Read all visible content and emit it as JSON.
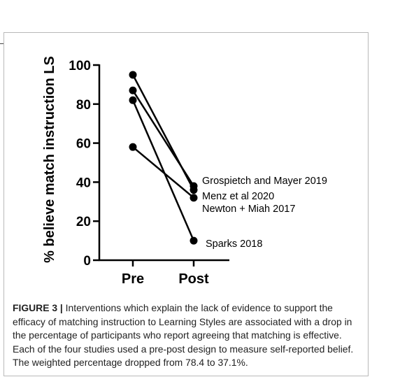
{
  "caption": {
    "label": "FIGURE 3 |",
    "text": " Interventions which explain the lack of evidence to support the efficacy of matching instruction to Learning Styles are associated with a drop in the percentage of participants who report agreeing that matching is effective. Each of the four studies used a pre-post design to measure self-reported belief. The weighted percentage dropped from 78.4 to 37.1%."
  },
  "chart_data": {
    "type": "line",
    "categories": [
      "Pre",
      "Post"
    ],
    "ylabel": "% believe match instruction LS",
    "xlabel": "",
    "ylim": [
      0,
      100
    ],
    "yticks": [
      0,
      20,
      40,
      60,
      80,
      100
    ],
    "grid": false,
    "legend": "right of post points",
    "series": [
      {
        "name": "Grospietch and Mayer 2019",
        "values": [
          87,
          38
        ]
      },
      {
        "name": "Menz et al 2020",
        "values": [
          95,
          36
        ]
      },
      {
        "name": "Newton + Miah 2017",
        "values": [
          58,
          32
        ]
      },
      {
        "name": "Sparks 2018",
        "values": [
          82,
          10
        ]
      }
    ]
  }
}
